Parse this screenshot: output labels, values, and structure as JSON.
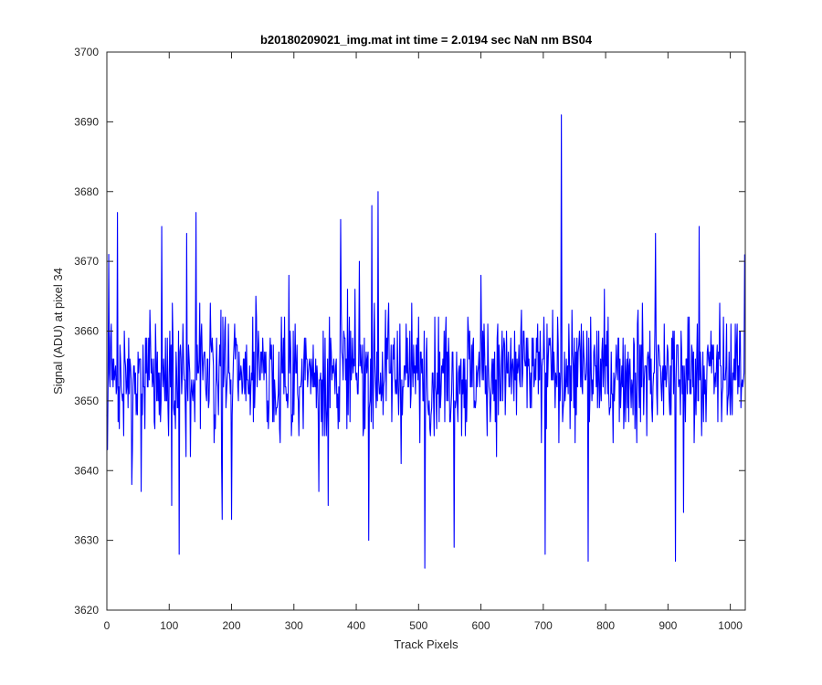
{
  "chart_data": {
    "type": "line",
    "title": "b20180209021_img.mat int time = 2.0194 sec  NaN nm BS04",
    "xlabel": "Track Pixels",
    "ylabel": "Signal (ADU) at pixel 34",
    "xlim": [
      0,
      1024
    ],
    "ylim": [
      3620,
      3700
    ],
    "xticks": [
      0,
      100,
      200,
      300,
      400,
      500,
      600,
      700,
      800,
      900,
      1000
    ],
    "yticks": [
      3620,
      3630,
      3640,
      3650,
      3660,
      3670,
      3680,
      3690,
      3700
    ],
    "grid": false,
    "series": [
      {
        "color": "#0000ff",
        "notable_points": [
          {
            "x": 1,
            "y": 3643
          },
          {
            "x": 3,
            "y": 3671
          },
          {
            "x": 17,
            "y": 3677
          },
          {
            "x": 40,
            "y": 3638
          },
          {
            "x": 55,
            "y": 3637
          },
          {
            "x": 88,
            "y": 3675
          },
          {
            "x": 104,
            "y": 3635
          },
          {
            "x": 116,
            "y": 3628
          },
          {
            "x": 128,
            "y": 3674
          },
          {
            "x": 143,
            "y": 3677
          },
          {
            "x": 185,
            "y": 3633
          },
          {
            "x": 200,
            "y": 3633
          },
          {
            "x": 292,
            "y": 3668
          },
          {
            "x": 340,
            "y": 3637
          },
          {
            "x": 355,
            "y": 3635
          },
          {
            "x": 375,
            "y": 3676
          },
          {
            "x": 405,
            "y": 3670
          },
          {
            "x": 420,
            "y": 3630
          },
          {
            "x": 425,
            "y": 3678
          },
          {
            "x": 435,
            "y": 3680
          },
          {
            "x": 510,
            "y": 3626
          },
          {
            "x": 557,
            "y": 3629
          },
          {
            "x": 600,
            "y": 3668
          },
          {
            "x": 703,
            "y": 3628
          },
          {
            "x": 729,
            "y": 3691
          },
          {
            "x": 772,
            "y": 3627
          },
          {
            "x": 880,
            "y": 3674
          },
          {
            "x": 912,
            "y": 3627
          },
          {
            "x": 925,
            "y": 3634
          },
          {
            "x": 950,
            "y": 3675
          },
          {
            "x": 1023,
            "y": 3671
          }
        ]
      }
    ]
  }
}
